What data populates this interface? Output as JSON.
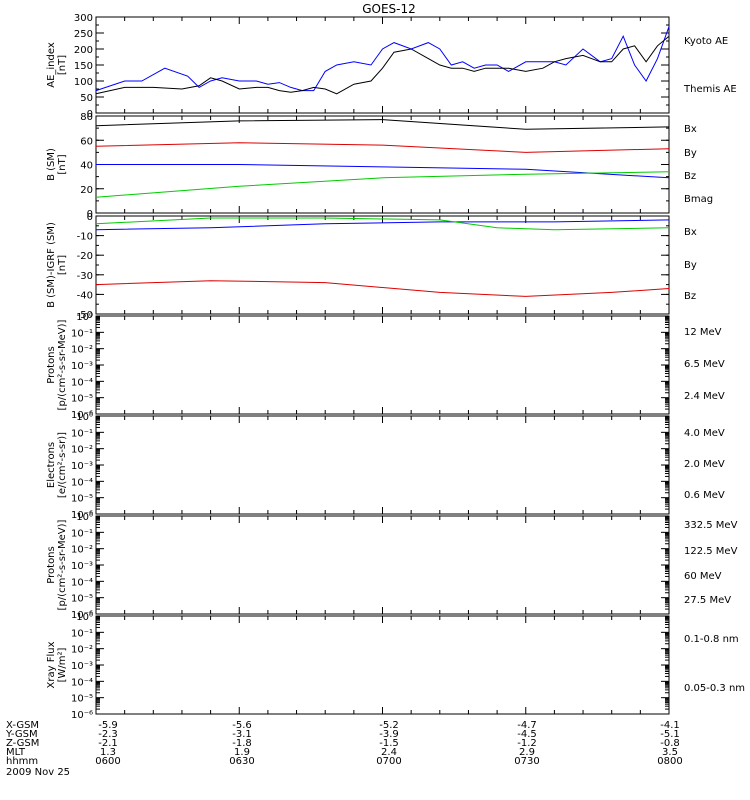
{
  "title": "GOES-12",
  "chart_data": [
    {
      "type": "line",
      "ylabel": [
        "AE_index",
        "[nT]"
      ],
      "ylim": [
        0,
        300
      ],
      "yticks": [
        0,
        50,
        100,
        150,
        200,
        250,
        300
      ],
      "ytick_labels": [
        "0",
        "50",
        "100",
        "150",
        "200",
        "250",
        "300"
      ],
      "log": false,
      "series": [
        {
          "name": "Kyoto AE",
          "color": "#0000ff",
          "x": [
            0.0,
            0.05,
            0.08,
            0.12,
            0.16,
            0.18,
            0.2,
            0.22,
            0.25,
            0.28,
            0.3,
            0.32,
            0.34,
            0.36,
            0.38,
            0.4,
            0.42,
            0.45,
            0.48,
            0.5,
            0.52,
            0.55,
            0.58,
            0.6,
            0.62,
            0.64,
            0.66,
            0.68,
            0.7,
            0.72,
            0.75,
            0.78,
            0.8,
            0.82,
            0.85,
            0.88,
            0.9,
            0.92,
            0.94,
            0.96,
            0.98,
            1.0
          ],
          "y": [
            70,
            100,
            100,
            140,
            115,
            80,
            100,
            110,
            100,
            100,
            90,
            95,
            80,
            70,
            70,
            130,
            150,
            160,
            150,
            200,
            220,
            200,
            220,
            200,
            150,
            160,
            140,
            150,
            150,
            130,
            160,
            160,
            160,
            150,
            200,
            160,
            170,
            240,
            150,
            100,
            170,
            270
          ]
        },
        {
          "name": "Themis AE",
          "color": "#000000",
          "x": [
            0.0,
            0.05,
            0.1,
            0.15,
            0.18,
            0.2,
            0.22,
            0.25,
            0.28,
            0.3,
            0.32,
            0.34,
            0.36,
            0.38,
            0.4,
            0.42,
            0.45,
            0.48,
            0.5,
            0.52,
            0.55,
            0.58,
            0.6,
            0.62,
            0.64,
            0.66,
            0.68,
            0.7,
            0.72,
            0.75,
            0.78,
            0.8,
            0.82,
            0.85,
            0.88,
            0.9,
            0.92,
            0.94,
            0.96,
            0.98,
            1.0
          ],
          "y": [
            60,
            80,
            80,
            75,
            85,
            110,
            100,
            75,
            80,
            80,
            70,
            65,
            70,
            80,
            75,
            60,
            90,
            100,
            140,
            190,
            200,
            170,
            150,
            140,
            140,
            130,
            140,
            140,
            140,
            130,
            140,
            160,
            170,
            180,
            160,
            160,
            200,
            210,
            160,
            210,
            240
          ]
        }
      ]
    },
    {
      "type": "line",
      "ylabel": [
        "B (SM)",
        "[nT]"
      ],
      "ylim": [
        0,
        80
      ],
      "yticks": [
        0,
        20,
        40,
        60,
        80
      ],
      "ytick_labels": [
        "0",
        "20",
        "40",
        "60",
        "80"
      ],
      "log": false,
      "series": [
        {
          "name": "Bx",
          "color": "#0000ff",
          "x": [
            0,
            0.25,
            0.5,
            0.75,
            1.0
          ],
          "y": [
            40,
            40,
            38,
            36,
            29
          ]
        },
        {
          "name": "By",
          "color": "#00cc00",
          "x": [
            0,
            0.25,
            0.5,
            0.75,
            1.0
          ],
          "y": [
            13,
            22,
            29,
            32,
            34
          ]
        },
        {
          "name": "Bz",
          "color": "#dd0000",
          "x": [
            0,
            0.25,
            0.5,
            0.75,
            1.0
          ],
          "y": [
            55,
            58,
            56,
            50,
            53
          ]
        },
        {
          "name": "Bmag",
          "color": "#000000",
          "x": [
            0,
            0.25,
            0.5,
            0.75,
            1.0
          ],
          "y": [
            72,
            76,
            77,
            69,
            71
          ]
        }
      ]
    },
    {
      "type": "line",
      "ylabel": [
        "B (SM)-IGRF (SM)",
        "[nT]"
      ],
      "ylim": [
        -50,
        0
      ],
      "yticks": [
        0,
        -10,
        -20,
        -30,
        -40,
        -50
      ],
      "ytick_labels": [
        "0",
        "-10",
        "-20",
        "-30",
        "-40",
        "-50"
      ],
      "log": false,
      "series": [
        {
          "name": "Bx",
          "color": "#0000ff",
          "x": [
            0,
            0.2,
            0.4,
            0.6,
            0.8,
            1.0
          ],
          "y": [
            -7,
            -6,
            -4,
            -3,
            -3,
            -2
          ]
        },
        {
          "name": "By",
          "color": "#00cc00",
          "x": [
            0,
            0.2,
            0.4,
            0.6,
            0.7,
            0.8,
            1.0
          ],
          "y": [
            -4,
            -1,
            -1,
            -2,
            -6,
            -7,
            -6
          ]
        },
        {
          "name": "Bz",
          "color": "#dd0000",
          "x": [
            0,
            0.2,
            0.4,
            0.6,
            0.75,
            0.9,
            1.0
          ],
          "y": [
            -35,
            -33,
            -34,
            -39,
            -41,
            -39,
            -37
          ]
        }
      ]
    },
    {
      "type": "line",
      "log": true,
      "ylabel": [
        "Protons",
        "[p/(cm²-s-sr-MeV)]"
      ],
      "ylim": [
        -6,
        0
      ],
      "yticks": [
        0,
        -1,
        -2,
        -3,
        -4,
        -5,
        -6
      ],
      "ytick_labels": [
        "10⁰",
        "10⁻¹",
        "10⁻²",
        "10⁻³",
        "10⁻⁴",
        "10⁻⁵",
        "10⁻⁶"
      ],
      "series": [
        {
          "name": "12 MeV",
          "color": "#cc0000",
          "x": [],
          "y": []
        },
        {
          "name": "6.5 MeV",
          "color": "#00cc00",
          "x": [],
          "y": []
        },
        {
          "name": "2.4 MeV",
          "color": "#000000",
          "x": [],
          "y": []
        }
      ]
    },
    {
      "type": "line",
      "log": true,
      "ylabel": [
        "Electrons",
        "[e/(cm²-s-sr)]"
      ],
      "ylim": [
        -6,
        0
      ],
      "yticks": [
        0,
        -1,
        -2,
        -3,
        -4,
        -5,
        -6
      ],
      "ytick_labels": [
        "10⁰",
        "10⁻¹",
        "10⁻²",
        "10⁻³",
        "10⁻⁴",
        "10⁻⁵",
        "10⁻⁶"
      ],
      "series": [
        {
          "name": "4.0 MeV",
          "color": "#cc0000",
          "x": [],
          "y": []
        },
        {
          "name": "2.0 MeV",
          "color": "#00cc00",
          "x": [],
          "y": []
        },
        {
          "name": "0.6 MeV",
          "color": "#000000",
          "x": [],
          "y": []
        }
      ]
    },
    {
      "type": "line",
      "log": true,
      "ylabel": [
        "Protons",
        "[p/(cm²-s-sr-MeV)]"
      ],
      "ylim": [
        -6,
        0
      ],
      "yticks": [
        0,
        -1,
        -2,
        -3,
        -4,
        -5,
        -6
      ],
      "ytick_labels": [
        "10⁰",
        "10⁻¹",
        "10⁻²",
        "10⁻³",
        "10⁻⁴",
        "10⁻⁵",
        "10⁻⁶"
      ],
      "series": [
        {
          "name": "332.5 MeV",
          "color": "#cc0000",
          "x": [],
          "y": []
        },
        {
          "name": "122.5 MeV",
          "color": "#ffd700",
          "x": [],
          "y": []
        },
        {
          "name": "60 MeV",
          "color": "#00aaff",
          "x": [],
          "y": []
        },
        {
          "name": "27.5 MeV",
          "color": "#000000",
          "x": [],
          "y": []
        }
      ]
    },
    {
      "type": "line",
      "log": true,
      "ylabel": [
        "Xray Flux",
        "[W/m²]"
      ],
      "ylim": [
        -6,
        0
      ],
      "yticks": [
        0,
        -1,
        -2,
        -3,
        -4,
        -5,
        -6
      ],
      "ytick_labels": [
        "10⁰",
        "10⁻¹",
        "10⁻²",
        "10⁻³",
        "10⁻⁴",
        "10⁻⁵",
        "10⁻⁶"
      ],
      "series": [
        {
          "name": "0.1-0.8 nm",
          "color": "#cc0000",
          "x": [],
          "y": []
        },
        {
          "name": "0.05-0.3 nm",
          "color": "#0000cc",
          "x": [],
          "y": []
        }
      ]
    }
  ],
  "x_axis": {
    "rows": [
      {
        "label": "X-GSM",
        "values": [
          "-5.9",
          "-5.6",
          "-5.2",
          "-4.7",
          "-4.1"
        ]
      },
      {
        "label": "Y-GSM",
        "values": [
          "-2.3",
          "-3.1",
          "-3.9",
          "-4.5",
          "-5.1"
        ]
      },
      {
        "label": "Z-GSM",
        "values": [
          "-2.1",
          "-1.8",
          "-1.5",
          "-1.2",
          "-0.8"
        ]
      },
      {
        "label": "MLT",
        "values": [
          "1.3",
          "1.9",
          "2.4",
          "2.9",
          "3.5"
        ]
      },
      {
        "label": "hhmm",
        "values": [
          "0600",
          "0630",
          "0700",
          "0730",
          "0800"
        ]
      }
    ],
    "date": "2009 Nov 25"
  }
}
